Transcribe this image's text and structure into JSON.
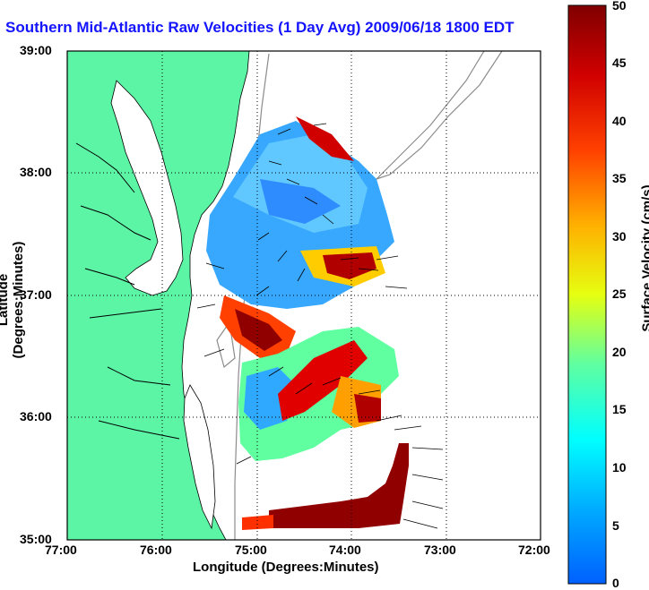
{
  "title": "Southern Mid-Atlantic Raw Velocities (1 Day Avg) 2009/06/18 1800 EDT",
  "map": {
    "xlabel": "Longitude (Degrees:Minutes)",
    "ylabel": "Latitude (Degrees:Minutes)",
    "lon_ticks": [
      "77:00",
      "76:00",
      "75:00",
      "74:00",
      "73:00",
      "72:00"
    ],
    "lat_ticks": [
      "39:00",
      "38:00",
      "37:00",
      "36:00",
      "35:00"
    ],
    "land_color": "#5cf5a6",
    "grid": true
  },
  "colorbar": {
    "label": "Surface Velocity (cm/s)",
    "ticks": [
      "50",
      "45",
      "40",
      "35",
      "30",
      "25",
      "20",
      "15",
      "10",
      "5",
      "0"
    ],
    "min": 0,
    "max": 50
  }
}
